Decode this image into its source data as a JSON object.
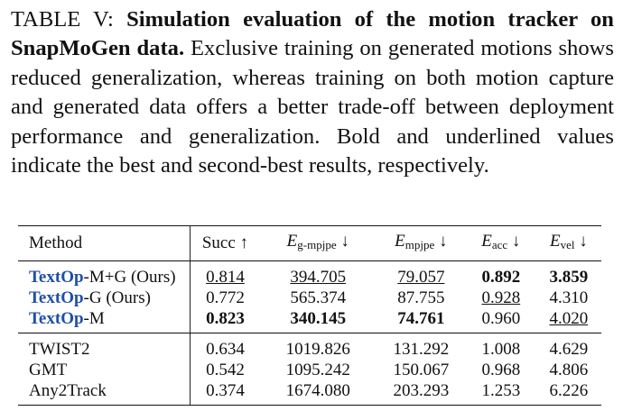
{
  "caption": {
    "label": "TABLE V:",
    "bold_title": "Simulation evaluation of the motion tracker on SnapMoGen data.",
    "body": "Exclusive training on generated motions shows reduced generalization, whereas training on both motion capture and generated data offers a better trade-off between deployment performance and generalization. Bold and underlined values indicate the best and second-best results, respectively."
  },
  "table": {
    "headers": {
      "method": "Method",
      "succ": "Succ ↑",
      "e_g_mpjpe_sym": "E",
      "e_g_mpjpe_sub": "g-mpjpe",
      "e_g_mpjpe_arrow": "↓",
      "e_mpjpe_sym": "E",
      "e_mpjpe_sub": "mpjpe",
      "e_mpjpe_arrow": "↓",
      "e_acc_sym": "E",
      "e_acc_sub": "acc",
      "e_acc_arrow": "↓",
      "e_vel_sym": "E",
      "e_vel_sub": "vel",
      "e_vel_arrow": "↓"
    },
    "group1": [
      {
        "name_prefix": "TextOp",
        "name_suffix": "-M+G (Ours)",
        "succ": "0.814",
        "e_g_mpjpe": "394.705",
        "e_mpjpe": "79.057",
        "e_acc": "0.892",
        "e_vel": "3.859"
      },
      {
        "name_prefix": "TextOp",
        "name_suffix": "-G (Ours)",
        "succ": "0.772",
        "e_g_mpjpe": "565.374",
        "e_mpjpe": "87.755",
        "e_acc": "0.928",
        "e_vel": "4.310"
      },
      {
        "name_prefix": "TextOp",
        "name_suffix": "-M",
        "succ": "0.823",
        "e_g_mpjpe": "340.145",
        "e_mpjpe": "74.761",
        "e_acc": "0.960",
        "e_vel": "4.020"
      }
    ],
    "group2": [
      {
        "name": "TWIST2",
        "succ": "0.634",
        "e_g_mpjpe": "1019.826",
        "e_mpjpe": "131.292",
        "e_acc": "1.008",
        "e_vel": "4.629"
      },
      {
        "name": "GMT",
        "succ": "0.542",
        "e_g_mpjpe": "1095.242",
        "e_mpjpe": "150.067",
        "e_acc": "0.968",
        "e_vel": "4.806"
      },
      {
        "name": "Any2Track",
        "succ": "0.374",
        "e_g_mpjpe": "1674.080",
        "e_mpjpe": "203.293",
        "e_acc": "1.253",
        "e_vel": "6.226"
      }
    ]
  }
}
